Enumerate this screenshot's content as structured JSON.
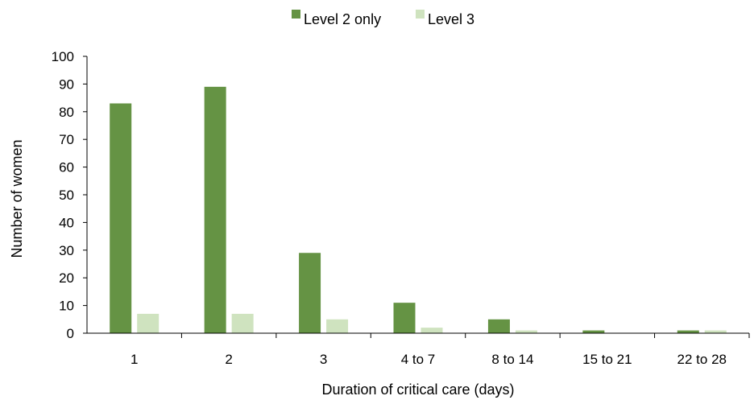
{
  "chart_data": {
    "type": "bar",
    "categories": [
      "1",
      "2",
      "3",
      "4 to 7",
      "8 to 14",
      "15 to 21",
      "22 to 28"
    ],
    "series": [
      {
        "name": "Level 2 only",
        "color": "#659344",
        "values": [
          83,
          89,
          29,
          11,
          5,
          1,
          1
        ]
      },
      {
        "name": "Level 3",
        "color": "#cfe3bf",
        "values": [
          7,
          7,
          5,
          2,
          1,
          0,
          1
        ]
      }
    ],
    "xlabel": "Duration of critical care (days)",
    "ylabel": "Number of women",
    "ylim": [
      0,
      100
    ],
    "yticks": [
      0,
      10,
      20,
      30,
      40,
      50,
      60,
      70,
      80,
      90,
      100
    ],
    "grid": false,
    "legend_position": "top-center"
  }
}
